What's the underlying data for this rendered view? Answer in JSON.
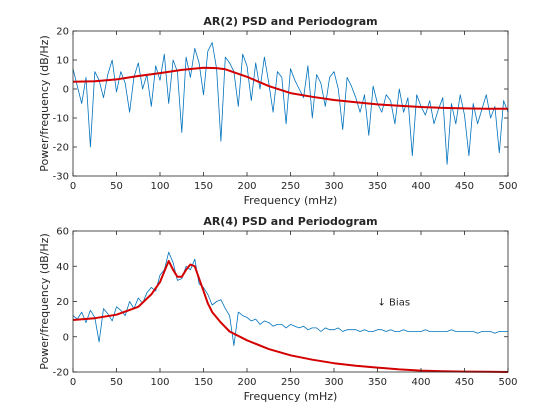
{
  "chart_data": [
    {
      "type": "line",
      "title": "AR(2) PSD and Periodogram",
      "xlabel": "Frequency (mHz)",
      "ylabel": "Power/frequency (dB/Hz)",
      "xlim": [
        0,
        500
      ],
      "ylim": [
        -30,
        20
      ],
      "xticks": [
        "0",
        "50",
        "100",
        "150",
        "200",
        "250",
        "300",
        "350",
        "400",
        "450",
        "500"
      ],
      "yticks": [
        "-30",
        "-20",
        "-10",
        "0",
        "10",
        "20"
      ],
      "grid": false,
      "colors": {
        "periodogram": "#0072BD",
        "psd": "#D40000"
      },
      "series": [
        {
          "role": "periodogram",
          "x": [
            0,
            5,
            10,
            15,
            20,
            25,
            30,
            35,
            40,
            45,
            50,
            55,
            60,
            65,
            70,
            75,
            80,
            85,
            90,
            95,
            100,
            105,
            110,
            115,
            120,
            125,
            130,
            135,
            140,
            145,
            150,
            155,
            160,
            165,
            170,
            175,
            180,
            185,
            190,
            195,
            200,
            205,
            210,
            215,
            220,
            225,
            230,
            235,
            240,
            245,
            250,
            255,
            260,
            265,
            270,
            275,
            280,
            285,
            290,
            295,
            300,
            305,
            310,
            315,
            320,
            325,
            330,
            335,
            340,
            345,
            350,
            355,
            360,
            365,
            370,
            375,
            380,
            385,
            390,
            395,
            400,
            405,
            410,
            415,
            420,
            425,
            430,
            435,
            440,
            445,
            450,
            455,
            460,
            465,
            470,
            475,
            480,
            485,
            490,
            495,
            500
          ],
          "y": [
            7,
            1,
            -5,
            4,
            -20,
            6,
            3,
            -3,
            5,
            10,
            -1,
            6,
            2,
            -8,
            4,
            9,
            0,
            5,
            -6,
            8,
            3,
            12,
            -5,
            10,
            6,
            -15,
            11,
            4,
            14,
            9,
            -2,
            13,
            16,
            7,
            -18,
            11,
            9,
            6,
            -6,
            12,
            8,
            -4,
            9,
            0,
            11,
            2,
            -8,
            6,
            4,
            -12,
            7,
            3,
            0,
            -3,
            8,
            -10,
            5,
            2,
            -6,
            4,
            6,
            0,
            -14,
            4,
            1,
            -3,
            -8,
            -2,
            -16,
            1,
            -5,
            -8,
            -2,
            -4,
            -12,
            0,
            -8,
            -3,
            -23,
            -2,
            -6,
            -9,
            -4,
            -12,
            -7,
            -3,
            -26,
            -5,
            -12,
            -2,
            -9,
            -23,
            -5,
            -12,
            -7,
            -2,
            -10,
            -6,
            -22,
            -4,
            -8
          ]
        },
        {
          "role": "psd",
          "x": [
            0,
            25,
            50,
            75,
            100,
            125,
            150,
            165,
            175,
            200,
            225,
            250,
            275,
            300,
            325,
            350,
            375,
            400,
            425,
            450,
            475,
            500
          ],
          "y": [
            2.5,
            2.7,
            3.3,
            4.5,
            5.5,
            6.6,
            7.3,
            7.2,
            6.8,
            4.2,
            1.0,
            -1.4,
            -2.7,
            -3.8,
            -4.6,
            -5.3,
            -5.8,
            -6.2,
            -6.5,
            -6.7,
            -6.8,
            -6.8
          ]
        }
      ]
    },
    {
      "type": "line",
      "title": "AR(4) PSD and Periodogram",
      "xlabel": "Frequency (mHz)",
      "ylabel": "Power/frequency (dB/Hz)",
      "xlim": [
        0,
        500
      ],
      "ylim": [
        -20,
        60
      ],
      "xticks": [
        "0",
        "50",
        "100",
        "150",
        "200",
        "250",
        "300",
        "350",
        "400",
        "450",
        "500"
      ],
      "yticks": [
        "-20",
        "0",
        "20",
        "40",
        "60"
      ],
      "grid": false,
      "colors": {
        "periodogram": "#0072BD",
        "psd": "#D40000"
      },
      "annotation": {
        "text": "↓ Bias",
        "x": 350,
        "y": 20
      },
      "series": [
        {
          "role": "periodogram",
          "x": [
            0,
            5,
            10,
            15,
            20,
            25,
            30,
            35,
            40,
            45,
            50,
            55,
            60,
            65,
            70,
            75,
            80,
            85,
            90,
            95,
            100,
            105,
            110,
            115,
            120,
            125,
            130,
            135,
            140,
            145,
            150,
            155,
            160,
            165,
            170,
            175,
            180,
            185,
            190,
            195,
            200,
            205,
            210,
            215,
            220,
            225,
            230,
            235,
            240,
            245,
            250,
            255,
            260,
            265,
            270,
            275,
            280,
            285,
            290,
            295,
            300,
            305,
            310,
            315,
            320,
            325,
            330,
            335,
            340,
            345,
            350,
            355,
            360,
            365,
            370,
            375,
            380,
            385,
            390,
            395,
            400,
            405,
            410,
            415,
            420,
            425,
            430,
            435,
            440,
            445,
            450,
            455,
            460,
            465,
            470,
            475,
            480,
            485,
            490,
            495,
            500
          ],
          "y": [
            12,
            10,
            14,
            8,
            15,
            11,
            -3,
            16,
            13,
            9,
            17,
            15,
            12,
            20,
            16,
            22,
            19,
            25,
            28,
            26,
            35,
            38,
            48,
            42,
            32,
            33,
            40,
            38,
            44,
            30,
            28,
            24,
            18,
            20,
            21,
            16,
            12,
            -5,
            14,
            12,
            11,
            9,
            10,
            7,
            9,
            8,
            6,
            7,
            7,
            5,
            7,
            6,
            5,
            6,
            4,
            5,
            5,
            3,
            5,
            4,
            4,
            5,
            3,
            4,
            4,
            4,
            3,
            4,
            3,
            3,
            4,
            4,
            3,
            4,
            3,
            3,
            4,
            3,
            3,
            3,
            3,
            4,
            3,
            3,
            3,
            3,
            3,
            4,
            3,
            3,
            3,
            3,
            3,
            2,
            3,
            3,
            3,
            2,
            3,
            3,
            3
          ]
        },
        {
          "role": "psd",
          "x": [
            0,
            25,
            50,
            75,
            90,
            100,
            105,
            110,
            115,
            120,
            125,
            130,
            135,
            140,
            145,
            150,
            155,
            160,
            170,
            180,
            200,
            225,
            250,
            275,
            300,
            325,
            350,
            375,
            400,
            425,
            450,
            475,
            500
          ],
          "y": [
            9.5,
            10.5,
            12.5,
            17,
            24,
            31,
            37,
            43,
            38,
            34,
            34,
            38,
            41,
            40,
            33,
            26,
            19,
            14,
            8,
            3,
            -2,
            -7,
            -10.5,
            -13,
            -15,
            -16.5,
            -17.5,
            -18.5,
            -19.2,
            -19.6,
            -19.8,
            -19.9,
            -20
          ]
        }
      ]
    }
  ]
}
